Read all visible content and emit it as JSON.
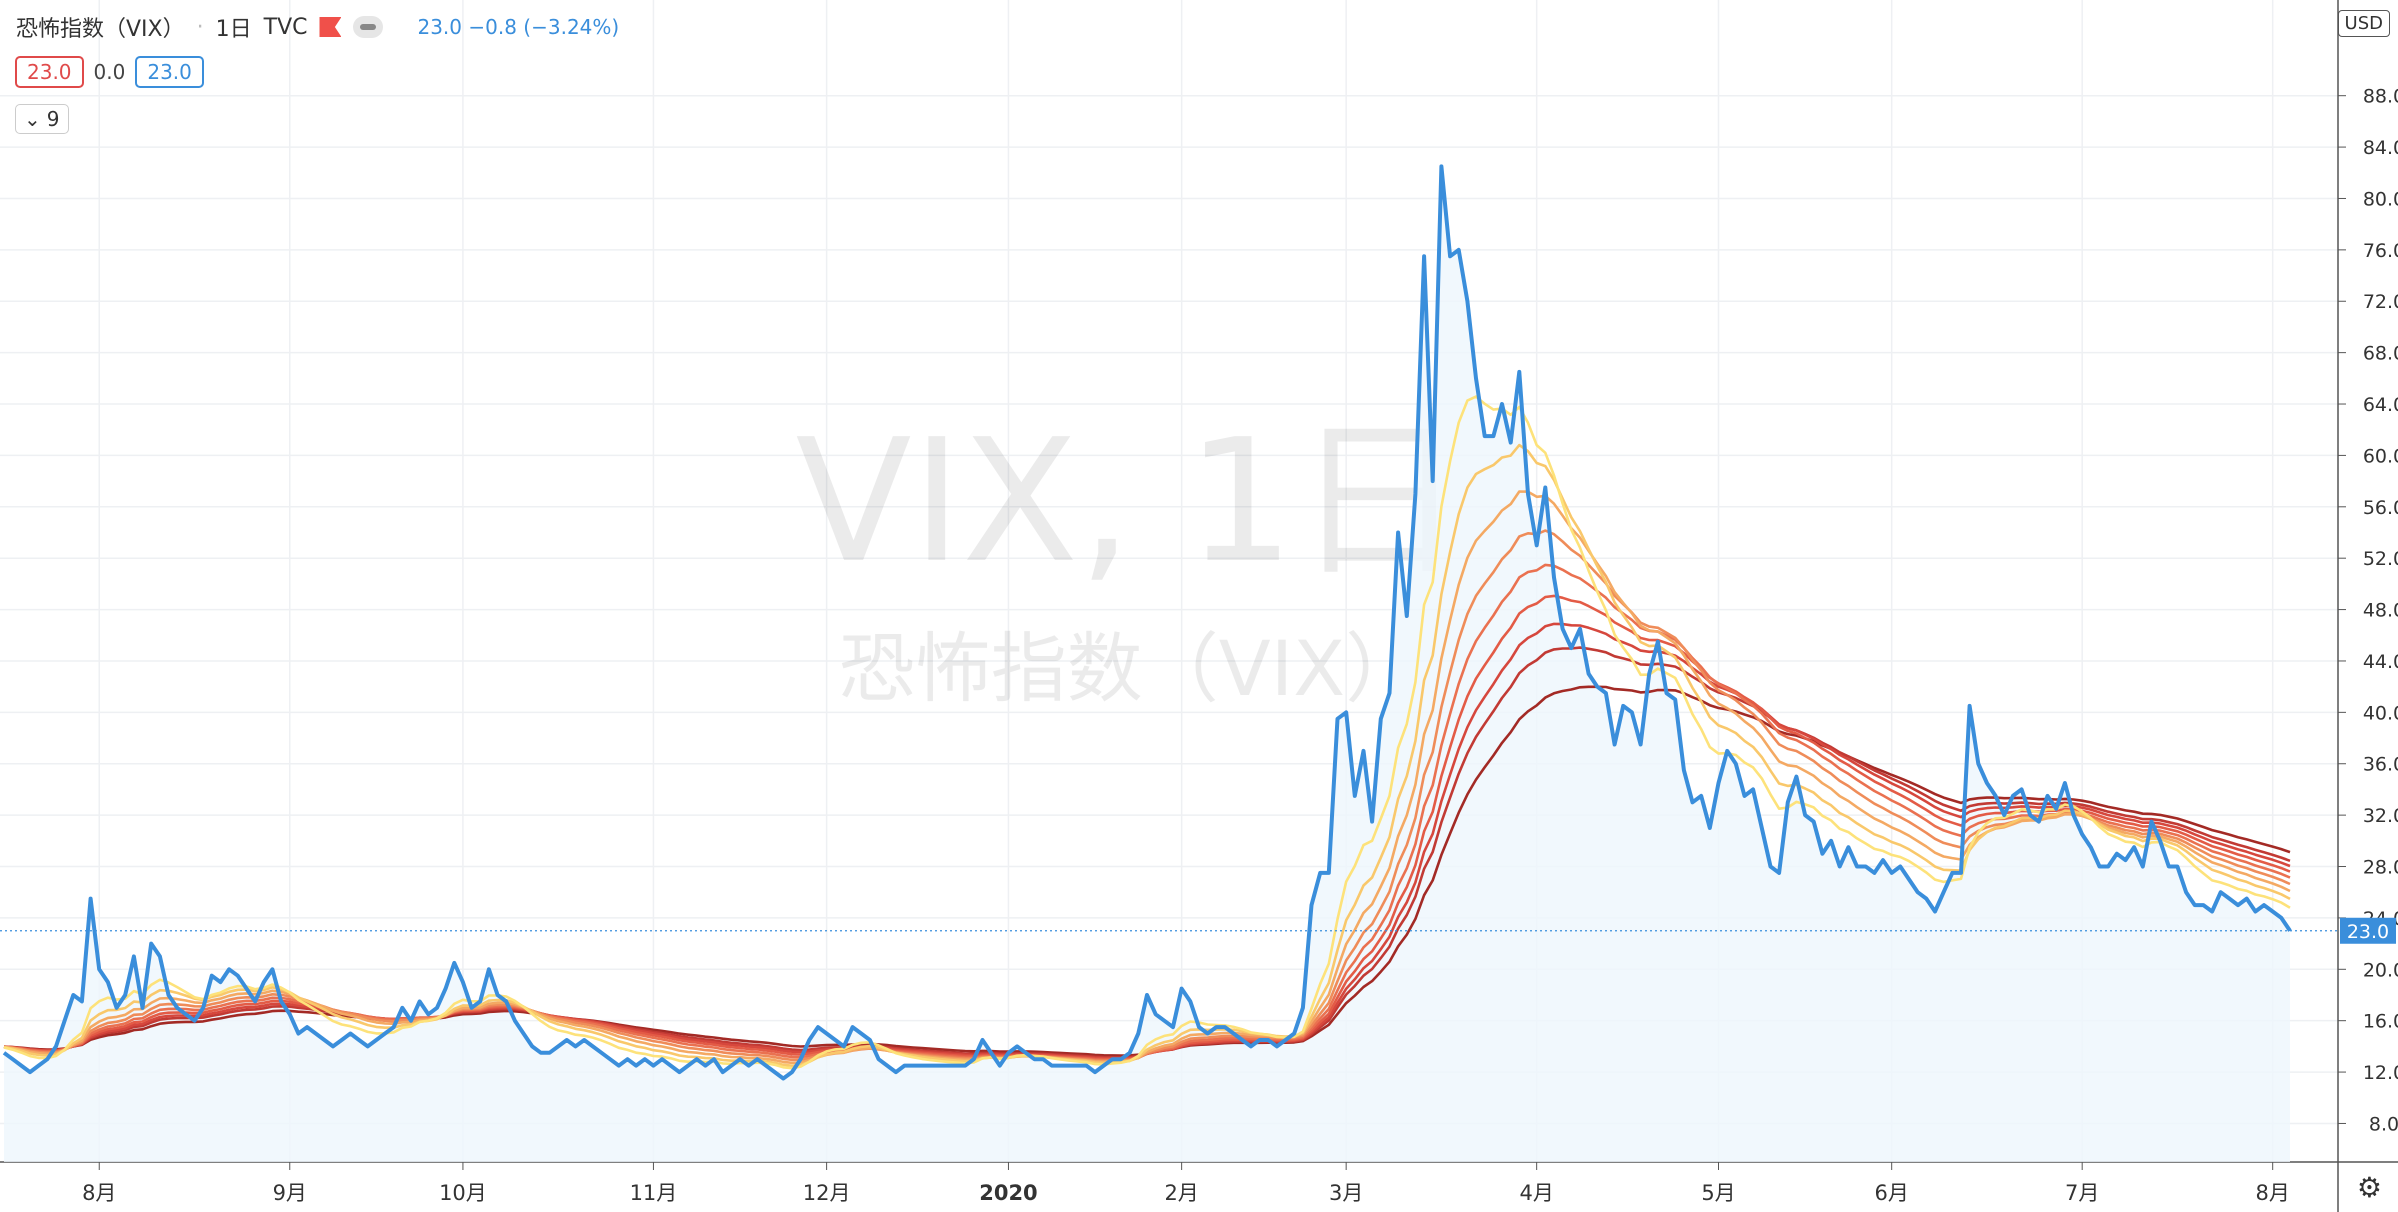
{
  "header": {
    "symbol_name": "恐怖指数（VIX）",
    "interval": "1日",
    "exchange": "TVC",
    "change": "23.0  −0.8 (−3.24%)"
  },
  "indicator_values": {
    "v1": "23.0",
    "v2": "0.0",
    "v3": "23.0"
  },
  "collapse": {
    "count": "9"
  },
  "currency": "USD",
  "watermark": {
    "line1": "VIX, 1日",
    "line2": "恐怖指数（VIX）"
  },
  "colors": {
    "price": "#3a8edb",
    "area": "#eef6fc",
    "grid": "#eef0f3",
    "ribbon": [
      "#fde27a",
      "#f9c86b",
      "#f4a963",
      "#ef8c59",
      "#ea7150",
      "#e35b46",
      "#d6473d",
      "#c23a34",
      "#a32a25"
    ]
  },
  "chart_data": {
    "type": "line",
    "title": "恐怖指数（VIX）",
    "ylim": [
      5,
      90
    ],
    "y_ticks": [
      8,
      12,
      16,
      20,
      24,
      28,
      32,
      36,
      40,
      44,
      48,
      52,
      56,
      60,
      64,
      68,
      72,
      76,
      80,
      84,
      88
    ],
    "x_ticks": [
      {
        "label": "8月",
        "i": 11
      },
      {
        "label": "9月",
        "i": 33
      },
      {
        "label": "10月",
        "i": 53
      },
      {
        "label": "11月",
        "i": 75
      },
      {
        "label": "12月",
        "i": 95
      },
      {
        "label": "2020",
        "i": 116
      },
      {
        "label": "2月",
        "i": 136
      },
      {
        "label": "3月",
        "i": 155
      },
      {
        "label": "4月",
        "i": 177
      },
      {
        "label": "5月",
        "i": 198
      },
      {
        "label": "6月",
        "i": 218
      },
      {
        "label": "7月",
        "i": 240
      },
      {
        "label": "8月",
        "i": 262
      }
    ],
    "last_value": "23.0",
    "grid": true,
    "series": [
      {
        "values": [
          13.5,
          13.0,
          12.5,
          12.0,
          12.5,
          13.0,
          14.0,
          16.0,
          18.0,
          17.5,
          25.5,
          20.0,
          19.0,
          17.0,
          18.0,
          21.0,
          17.0,
          22.0,
          21.0,
          18.0,
          17.0,
          16.5,
          16.0,
          17.0,
          19.5,
          19.0,
          20.0,
          19.5,
          18.5,
          17.5,
          19.0,
          20.0,
          17.5,
          16.5,
          15.0,
          15.5,
          15.0,
          14.5,
          14.0,
          14.5,
          15.0,
          14.5,
          14.0,
          14.5,
          15.0,
          15.5,
          17.0,
          16.0,
          17.5,
          16.5,
          17.0,
          18.5,
          20.5,
          19.0,
          17.0,
          17.5,
          20.0,
          18.0,
          17.5,
          16.0,
          15.0,
          14.0,
          13.5,
          13.5,
          14.0,
          14.5,
          14.0,
          14.5,
          14.0,
          13.5,
          13.0,
          12.5,
          13.0,
          12.5,
          13.0,
          12.5,
          13.0,
          12.5,
          12.0,
          12.5,
          13.0,
          12.5,
          13.0,
          12.0,
          12.5,
          13.0,
          12.5,
          13.0,
          12.5,
          12.0,
          11.5,
          12.0,
          13.0,
          14.5,
          15.5,
          15.0,
          14.5,
          14.0,
          15.5,
          15.0,
          14.5,
          13.0,
          12.5,
          12.0,
          12.5,
          12.5,
          12.5,
          12.5,
          12.5,
          12.5,
          12.5,
          12.5,
          13.0,
          14.5,
          13.5,
          12.5,
          13.5,
          14.0,
          13.5,
          13.0,
          13.0,
          12.5,
          12.5,
          12.5,
          12.5,
          12.5,
          12.0,
          12.5,
          13.0,
          13.0,
          13.5,
          15.0,
          18.0,
          16.5,
          16.0,
          15.5,
          18.5,
          17.5,
          15.5,
          15.0,
          15.5,
          15.5,
          15.0,
          14.5,
          14.0,
          14.5,
          14.5,
          14.0,
          14.5,
          15.0,
          17.0,
          25.0,
          27.5,
          27.5,
          39.5,
          40.0,
          33.5,
          37.0,
          31.5,
          39.5,
          41.5,
          54.0,
          47.5,
          57.0,
          75.5,
          58.0,
          82.5,
          75.5,
          76.0,
          72.0,
          66.0,
          61.5,
          61.5,
          64.0,
          61.0,
          66.5,
          57.0,
          53.0,
          57.5,
          50.5,
          46.5,
          45.0,
          46.5,
          43.0,
          42.0,
          41.5,
          37.5,
          40.5,
          40.0,
          37.5,
          43.0,
          45.5,
          41.5,
          41.0,
          35.5,
          33.0,
          33.5,
          31.0,
          34.5,
          37.0,
          36.0,
          33.5,
          34.0,
          31.0,
          28.0,
          27.5,
          33.0,
          35.0,
          32.0,
          31.5,
          29.0,
          30.0,
          28.0,
          29.5,
          28.0,
          28.0,
          27.5,
          28.5,
          27.5,
          28.0,
          27.0,
          26.0,
          25.5,
          24.5,
          26.0,
          27.5,
          27.5,
          40.5,
          36.0,
          34.5,
          33.5,
          32.0,
          33.5,
          34.0,
          32.0,
          31.5,
          33.5,
          32.5,
          34.5,
          32.0,
          30.5,
          29.5,
          28.0,
          28.0,
          29.0,
          28.5,
          29.5,
          28.0,
          31.5,
          30.0,
          28.0,
          28.0,
          26.0,
          25.0,
          25.0,
          24.5,
          26.0,
          25.5,
          25.0,
          25.5,
          24.5,
          25.0,
          24.5,
          24.0,
          23.0
        ]
      }
    ],
    "ribbon_periods": [
      10,
      15,
      20,
      25,
      30,
      35,
      40,
      45,
      55
    ]
  }
}
